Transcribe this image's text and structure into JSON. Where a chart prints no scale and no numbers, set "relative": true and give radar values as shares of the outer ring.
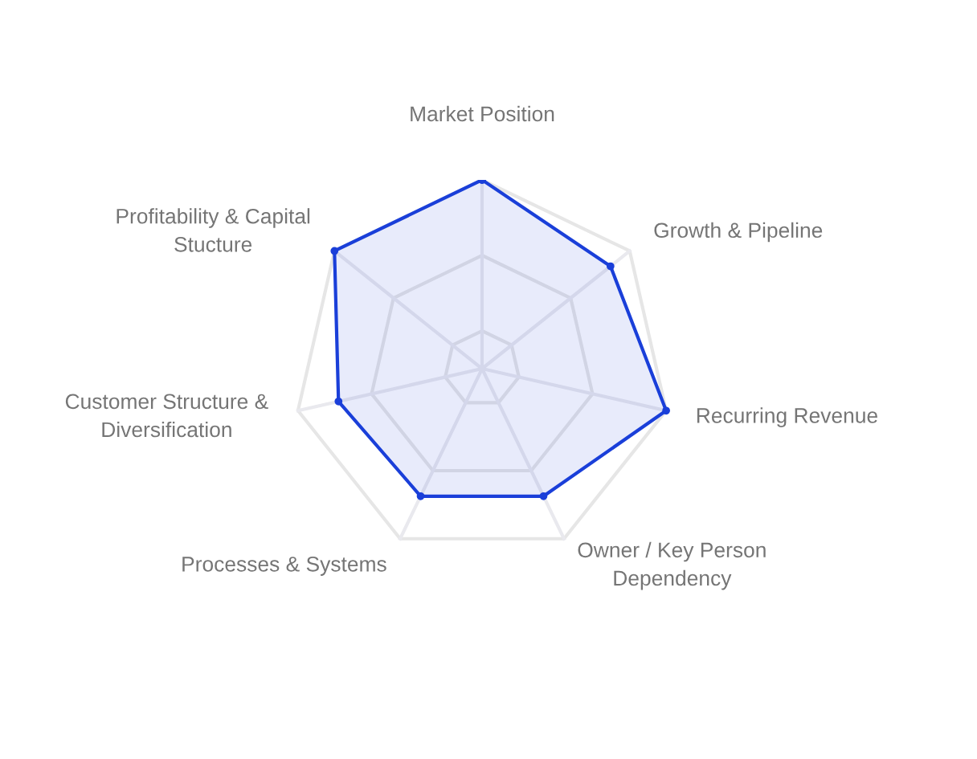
{
  "chart_data": {
    "type": "radar",
    "relative": true,
    "grid": true,
    "marker": "circle",
    "line_style": "solid",
    "categories": [
      "Market Position",
      "Growth & Pipeline",
      "Recurring Revenue",
      "Owner / Key Person\nDependency",
      "Processes & Systems",
      "Customer Structure &\nDiversification",
      "Profitability & Capital\nStucture"
    ],
    "series": [
      {
        "color": "#1a3fd9",
        "values": [
          1.0,
          0.87,
          1.0,
          0.75,
          0.75,
          0.78,
          1.0
        ]
      }
    ]
  }
}
